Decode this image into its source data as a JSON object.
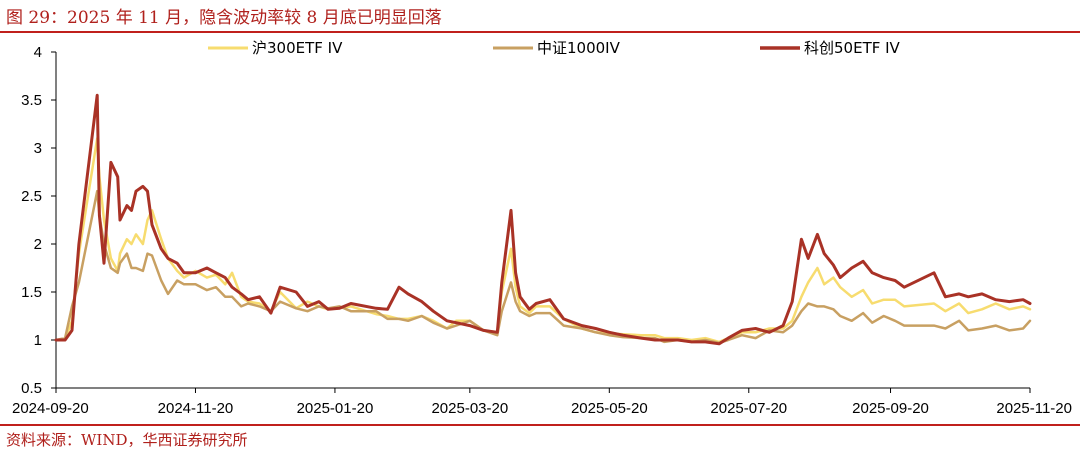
{
  "figure": {
    "title": "图 29：2025 年 11 月，隐含波动率较 8 月底已明显回落",
    "source": "资料来源：WIND，华西证券研究所"
  },
  "chart_data": {
    "type": "line",
    "title": "",
    "xlabel": "",
    "ylabel": "",
    "ylim": [
      0.5,
      4
    ],
    "yticks": [
      "0.5",
      "1",
      "1.5",
      "2",
      "2.5",
      "3",
      "3.5",
      "4"
    ],
    "xlim": [
      "2024-09-20",
      "2025-11-20"
    ],
    "xticks": [
      "2024-09-20",
      "2024-11-20",
      "2025-01-20",
      "2025-03-20",
      "2025-05-20",
      "2025-07-20",
      "2025-09-20",
      "2025-11-20"
    ],
    "grid": false,
    "legend_position": "top",
    "series": [
      {
        "name": "沪300ETF IV",
        "color": "#f7dc6f",
        "x": [
          "2024-09-20",
          "2024-09-24",
          "2024-09-27",
          "2024-09-30",
          "2024-10-08",
          "2024-10-09",
          "2024-10-11",
          "2024-10-14",
          "2024-10-17",
          "2024-10-18",
          "2024-10-21",
          "2024-10-23",
          "2024-10-25",
          "2024-10-28",
          "2024-10-30",
          "2024-11-01",
          "2024-11-05",
          "2024-11-08",
          "2024-11-12",
          "2024-11-15",
          "2024-11-20",
          "2024-11-25",
          "2024-11-29",
          "2024-12-03",
          "2024-12-06",
          "2024-12-10",
          "2024-12-13",
          "2024-12-18",
          "2024-12-23",
          "2024-12-27",
          "2025-01-03",
          "2025-01-08",
          "2025-01-13",
          "2025-01-17",
          "2025-01-22",
          "2025-01-27",
          "2025-02-07",
          "2025-02-12",
          "2025-02-17",
          "2025-02-21",
          "2025-02-27",
          "2025-03-04",
          "2025-03-10",
          "2025-03-14",
          "2025-03-20",
          "2025-03-26",
          "2025-04-01",
          "2025-04-03",
          "2025-04-07",
          "2025-04-09",
          "2025-04-11",
          "2025-04-15",
          "2025-04-18",
          "2025-04-24",
          "2025-04-30",
          "2025-05-08",
          "2025-05-14",
          "2025-05-20",
          "2025-05-26",
          "2025-06-03",
          "2025-06-09",
          "2025-06-13",
          "2025-06-19",
          "2025-06-25",
          "2025-07-01",
          "2025-07-07",
          "2025-07-11",
          "2025-07-17",
          "2025-07-23",
          "2025-07-29",
          "2025-08-04",
          "2025-08-08",
          "2025-08-12",
          "2025-08-15",
          "2025-08-19",
          "2025-08-22",
          "2025-08-26",
          "2025-08-29",
          "2025-09-03",
          "2025-09-08",
          "2025-09-12",
          "2025-09-17",
          "2025-09-22",
          "2025-09-26",
          "2025-10-09",
          "2025-10-14",
          "2025-10-20",
          "2025-10-24",
          "2025-10-30",
          "2025-11-05",
          "2025-11-11",
          "2025-11-17",
          "2025-11-20"
        ],
        "values": [
          1.0,
          1.01,
          1.2,
          1.9,
          3.1,
          2.7,
          2.25,
          1.85,
          1.72,
          1.9,
          2.05,
          2.0,
          2.1,
          2.0,
          2.25,
          2.35,
          2.05,
          1.85,
          1.72,
          1.65,
          1.72,
          1.65,
          1.68,
          1.58,
          1.7,
          1.45,
          1.4,
          1.38,
          1.3,
          1.5,
          1.33,
          1.4,
          1.35,
          1.32,
          1.33,
          1.35,
          1.27,
          1.25,
          1.22,
          1.22,
          1.25,
          1.2,
          1.12,
          1.2,
          1.2,
          1.1,
          1.08,
          1.5,
          1.95,
          1.55,
          1.35,
          1.28,
          1.35,
          1.35,
          1.22,
          1.12,
          1.08,
          1.07,
          1.06,
          1.05,
          1.05,
          1.02,
          1.02,
          1.0,
          1.02,
          0.98,
          1.02,
          1.08,
          1.08,
          1.12,
          1.12,
          1.2,
          1.45,
          1.6,
          1.75,
          1.58,
          1.65,
          1.55,
          1.45,
          1.52,
          1.38,
          1.42,
          1.42,
          1.35,
          1.38,
          1.3,
          1.38,
          1.28,
          1.32,
          1.38,
          1.32,
          1.35,
          1.32
        ]
      },
      {
        "name": "中证1000IV",
        "color": "#c8a062",
        "x": [
          "2024-09-20",
          "2024-09-24",
          "2024-09-27",
          "2024-09-30",
          "2024-10-08",
          "2024-10-09",
          "2024-10-11",
          "2024-10-14",
          "2024-10-17",
          "2024-10-18",
          "2024-10-21",
          "2024-10-23",
          "2024-10-25",
          "2024-10-28",
          "2024-10-30",
          "2024-11-01",
          "2024-11-05",
          "2024-11-08",
          "2024-11-12",
          "2024-11-15",
          "2024-11-20",
          "2024-11-25",
          "2024-11-29",
          "2024-12-03",
          "2024-12-06",
          "2024-12-10",
          "2024-12-13",
          "2024-12-18",
          "2024-12-23",
          "2024-12-27",
          "2025-01-03",
          "2025-01-08",
          "2025-01-13",
          "2025-01-17",
          "2025-01-22",
          "2025-01-27",
          "2025-02-07",
          "2025-02-12",
          "2025-02-17",
          "2025-02-21",
          "2025-02-27",
          "2025-03-04",
          "2025-03-10",
          "2025-03-14",
          "2025-03-20",
          "2025-03-26",
          "2025-04-01",
          "2025-04-03",
          "2025-04-07",
          "2025-04-09",
          "2025-04-11",
          "2025-04-15",
          "2025-04-18",
          "2025-04-24",
          "2025-04-30",
          "2025-05-08",
          "2025-05-14",
          "2025-05-20",
          "2025-05-26",
          "2025-06-03",
          "2025-06-09",
          "2025-06-13",
          "2025-06-19",
          "2025-06-25",
          "2025-07-01",
          "2025-07-07",
          "2025-07-11",
          "2025-07-17",
          "2025-07-23",
          "2025-07-29",
          "2025-08-04",
          "2025-08-08",
          "2025-08-12",
          "2025-08-15",
          "2025-08-19",
          "2025-08-22",
          "2025-08-26",
          "2025-08-29",
          "2025-09-03",
          "2025-09-08",
          "2025-09-12",
          "2025-09-17",
          "2025-09-22",
          "2025-09-26",
          "2025-10-09",
          "2025-10-14",
          "2025-10-20",
          "2025-10-24",
          "2025-10-30",
          "2025-11-05",
          "2025-11-11",
          "2025-11-17",
          "2025-11-20"
        ],
        "values": [
          1.0,
          1.02,
          1.35,
          1.6,
          2.55,
          2.3,
          2.0,
          1.75,
          1.7,
          1.8,
          1.9,
          1.75,
          1.75,
          1.72,
          1.9,
          1.88,
          1.62,
          1.48,
          1.62,
          1.58,
          1.58,
          1.52,
          1.55,
          1.45,
          1.45,
          1.35,
          1.38,
          1.35,
          1.3,
          1.4,
          1.33,
          1.3,
          1.35,
          1.33,
          1.35,
          1.3,
          1.3,
          1.22,
          1.22,
          1.2,
          1.25,
          1.18,
          1.12,
          1.15,
          1.2,
          1.1,
          1.05,
          1.3,
          1.6,
          1.4,
          1.3,
          1.25,
          1.28,
          1.28,
          1.15,
          1.12,
          1.08,
          1.05,
          1.03,
          1.02,
          1.02,
          0.98,
          1.0,
          0.98,
          1.0,
          0.97,
          1.0,
          1.05,
          1.02,
          1.1,
          1.08,
          1.15,
          1.3,
          1.38,
          1.35,
          1.35,
          1.32,
          1.25,
          1.2,
          1.28,
          1.18,
          1.25,
          1.2,
          1.15,
          1.15,
          1.12,
          1.2,
          1.1,
          1.12,
          1.15,
          1.1,
          1.12,
          1.2
        ]
      },
      {
        "name": "科创50ETF IV",
        "color": "#a93226",
        "x": [
          "2024-09-20",
          "2024-09-24",
          "2024-09-27",
          "2024-09-30",
          "2024-10-08",
          "2024-10-09",
          "2024-10-11",
          "2024-10-14",
          "2024-10-17",
          "2024-10-18",
          "2024-10-21",
          "2024-10-23",
          "2024-10-25",
          "2024-10-28",
          "2024-10-30",
          "2024-11-01",
          "2024-11-05",
          "2024-11-08",
          "2024-11-12",
          "2024-11-15",
          "2024-11-20",
          "2024-11-25",
          "2024-11-29",
          "2024-12-03",
          "2024-12-06",
          "2024-12-10",
          "2024-12-13",
          "2024-12-18",
          "2024-12-23",
          "2024-12-27",
          "2025-01-03",
          "2025-01-08",
          "2025-01-13",
          "2025-01-17",
          "2025-01-22",
          "2025-01-27",
          "2025-02-07",
          "2025-02-12",
          "2025-02-17",
          "2025-02-21",
          "2025-02-27",
          "2025-03-04",
          "2025-03-10",
          "2025-03-14",
          "2025-03-20",
          "2025-03-26",
          "2025-04-01",
          "2025-04-03",
          "2025-04-07",
          "2025-04-09",
          "2025-04-11",
          "2025-04-15",
          "2025-04-18",
          "2025-04-24",
          "2025-04-30",
          "2025-05-08",
          "2025-05-14",
          "2025-05-20",
          "2025-05-26",
          "2025-06-03",
          "2025-06-09",
          "2025-06-13",
          "2025-06-19",
          "2025-06-25",
          "2025-07-01",
          "2025-07-07",
          "2025-07-11",
          "2025-07-17",
          "2025-07-23",
          "2025-07-29",
          "2025-08-04",
          "2025-08-08",
          "2025-08-12",
          "2025-08-15",
          "2025-08-19",
          "2025-08-22",
          "2025-08-26",
          "2025-08-29",
          "2025-09-03",
          "2025-09-08",
          "2025-09-12",
          "2025-09-17",
          "2025-09-22",
          "2025-09-26",
          "2025-10-09",
          "2025-10-14",
          "2025-10-20",
          "2025-10-24",
          "2025-10-30",
          "2025-11-05",
          "2025-11-11",
          "2025-11-17",
          "2025-11-20"
        ],
        "values": [
          1.0,
          1.0,
          1.1,
          2.0,
          3.55,
          2.3,
          1.8,
          2.85,
          2.7,
          2.25,
          2.4,
          2.35,
          2.55,
          2.6,
          2.55,
          2.2,
          1.95,
          1.85,
          1.8,
          1.7,
          1.7,
          1.75,
          1.7,
          1.65,
          1.55,
          1.48,
          1.42,
          1.45,
          1.28,
          1.55,
          1.5,
          1.35,
          1.4,
          1.32,
          1.33,
          1.38,
          1.33,
          1.32,
          1.55,
          1.48,
          1.4,
          1.3,
          1.2,
          1.18,
          1.15,
          1.1,
          1.08,
          1.6,
          2.35,
          1.7,
          1.45,
          1.32,
          1.38,
          1.42,
          1.22,
          1.15,
          1.12,
          1.08,
          1.05,
          1.02,
          1.0,
          1.0,
          1.0,
          0.98,
          0.98,
          0.96,
          1.02,
          1.1,
          1.12,
          1.08,
          1.15,
          1.4,
          2.05,
          1.85,
          2.1,
          1.9,
          1.78,
          1.65,
          1.75,
          1.82,
          1.7,
          1.65,
          1.62,
          1.55,
          1.7,
          1.45,
          1.48,
          1.45,
          1.48,
          1.42,
          1.4,
          1.42,
          1.38
        ]
      }
    ]
  }
}
